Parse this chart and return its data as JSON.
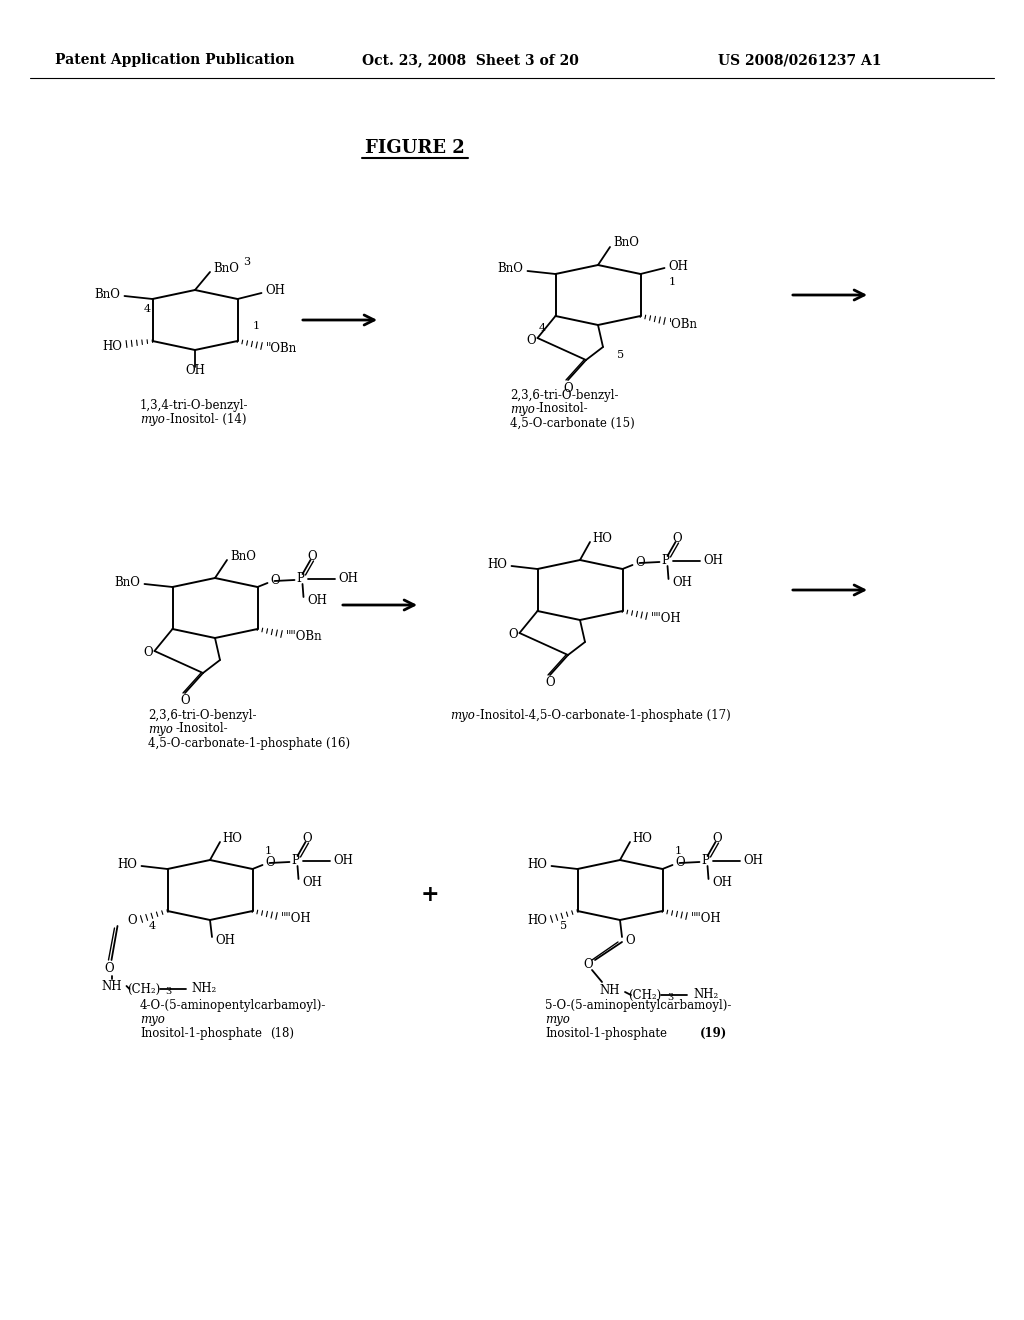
{
  "header_left": "Patent Application Publication",
  "header_center": "Oct. 23, 2008  Sheet 3 of 20",
  "header_right": "US 2008/0261237 A1",
  "figure_title": "FIGURE 2",
  "bg_color": "#ffffff",
  "text_color": "#000000"
}
